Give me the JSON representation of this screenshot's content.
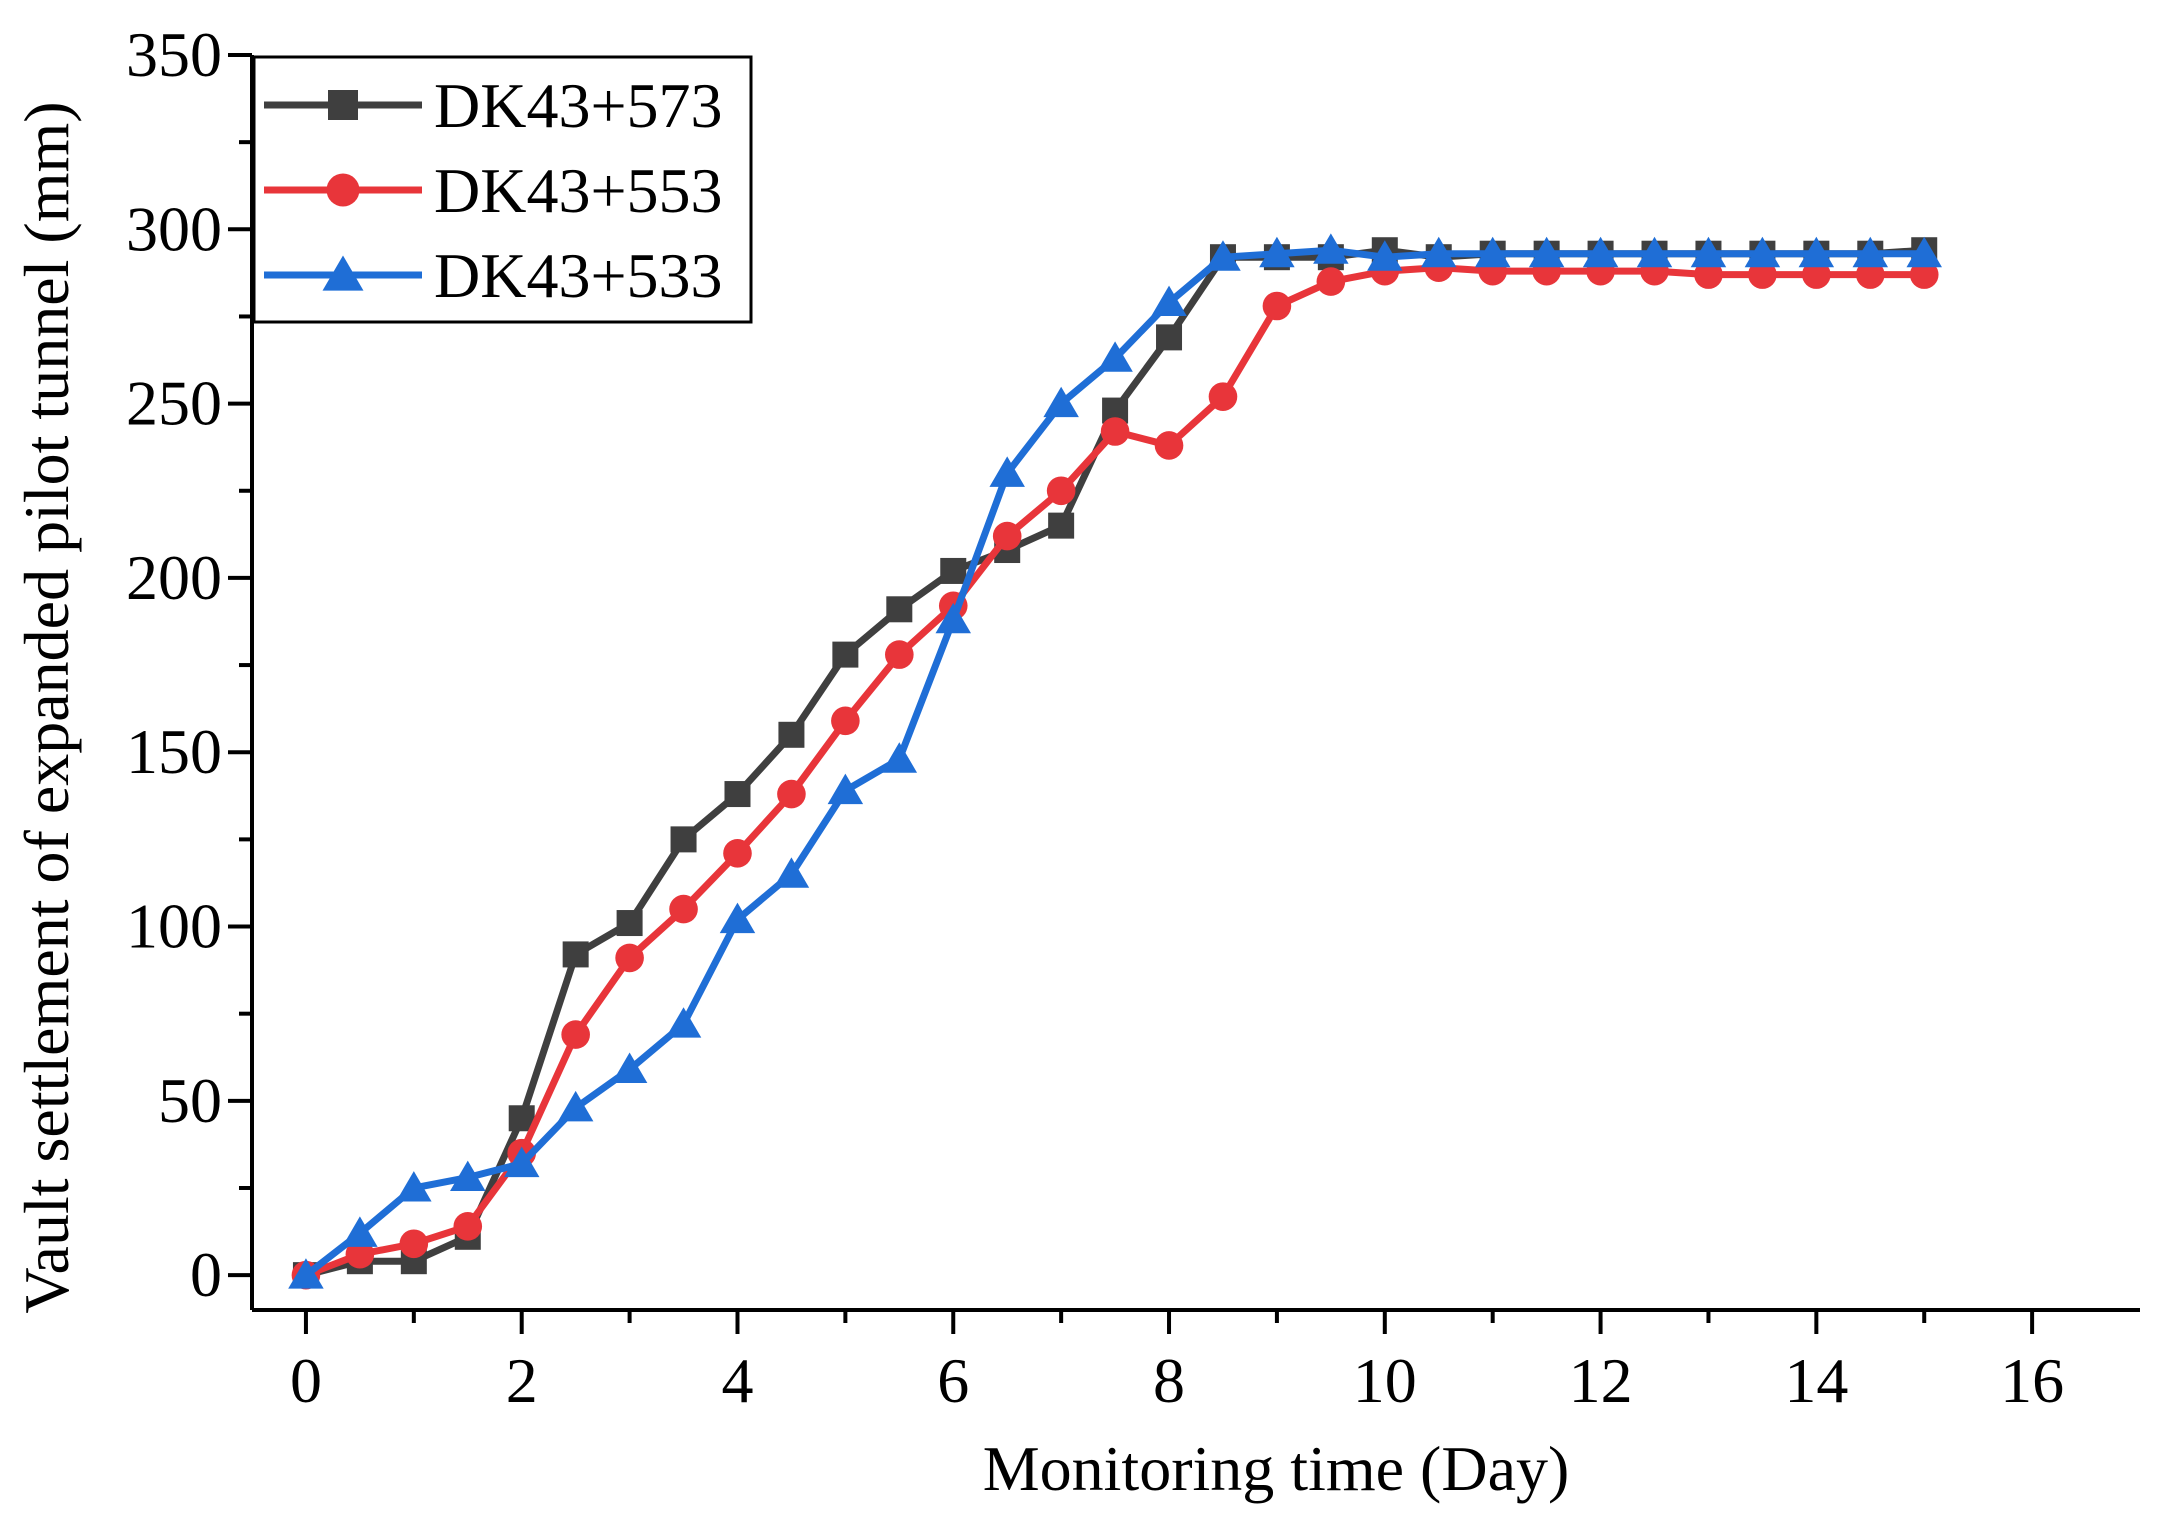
{
  "chart_data": {
    "type": "line",
    "xlabel": "Monitoring time (Day)",
    "ylabel": "Vault settlement of expanded pilot tunnel (mm)",
    "xlim": [
      -0.5,
      17
    ],
    "ylim": [
      -10,
      350
    ],
    "x_ticks": [
      0,
      2,
      4,
      6,
      8,
      10,
      12,
      14,
      16
    ],
    "y_ticks": [
      0,
      50,
      100,
      150,
      200,
      250,
      300,
      350
    ],
    "x_tick_labels": [
      "0",
      "2",
      "4",
      "6",
      "8",
      "10",
      "12",
      "14",
      "16"
    ],
    "y_tick_labels": [
      "0",
      "50",
      "100",
      "150",
      "200",
      "250",
      "300",
      "350"
    ],
    "grid": false,
    "legend_position": "top-left",
    "x": [
      0,
      0.5,
      1,
      1.5,
      2,
      2.5,
      3,
      3.5,
      4,
      4.5,
      5,
      5.5,
      6,
      6.5,
      7,
      7.5,
      8,
      8.5,
      9,
      9.5,
      10,
      10.5,
      11,
      11.5,
      12,
      12.5,
      13,
      13.5,
      14,
      14.5,
      15
    ],
    "series": [
      {
        "name": "DK43+573",
        "color": "#3f3f3f",
        "marker": "square",
        "values": [
          0,
          4,
          4,
          11,
          45,
          92,
          101,
          125,
          138,
          155,
          178,
          191,
          202,
          208,
          215,
          248,
          269,
          292,
          292,
          292,
          294,
          292,
          293,
          293,
          293,
          293,
          293,
          293,
          293,
          293,
          294
        ]
      },
      {
        "name": "DK43+553",
        "color": "#e8353a",
        "marker": "circle",
        "values": [
          0,
          6,
          9,
          14,
          35,
          69,
          91,
          105,
          121,
          138,
          159,
          178,
          192,
          212,
          225,
          242,
          238,
          252,
          278,
          285,
          288,
          289,
          288,
          288,
          288,
          288,
          287,
          287,
          287,
          287,
          287
        ]
      },
      {
        "name": "DK43+533",
        "color": "#1f6ed6",
        "marker": "triangle",
        "values": [
          0,
          12,
          25,
          28,
          32,
          48,
          59,
          72,
          102,
          115,
          139,
          148,
          188,
          230,
          250,
          263,
          279,
          292,
          293,
          294,
          292,
          293,
          293,
          293,
          293,
          293,
          293,
          293,
          293,
          293,
          293
        ]
      }
    ]
  }
}
